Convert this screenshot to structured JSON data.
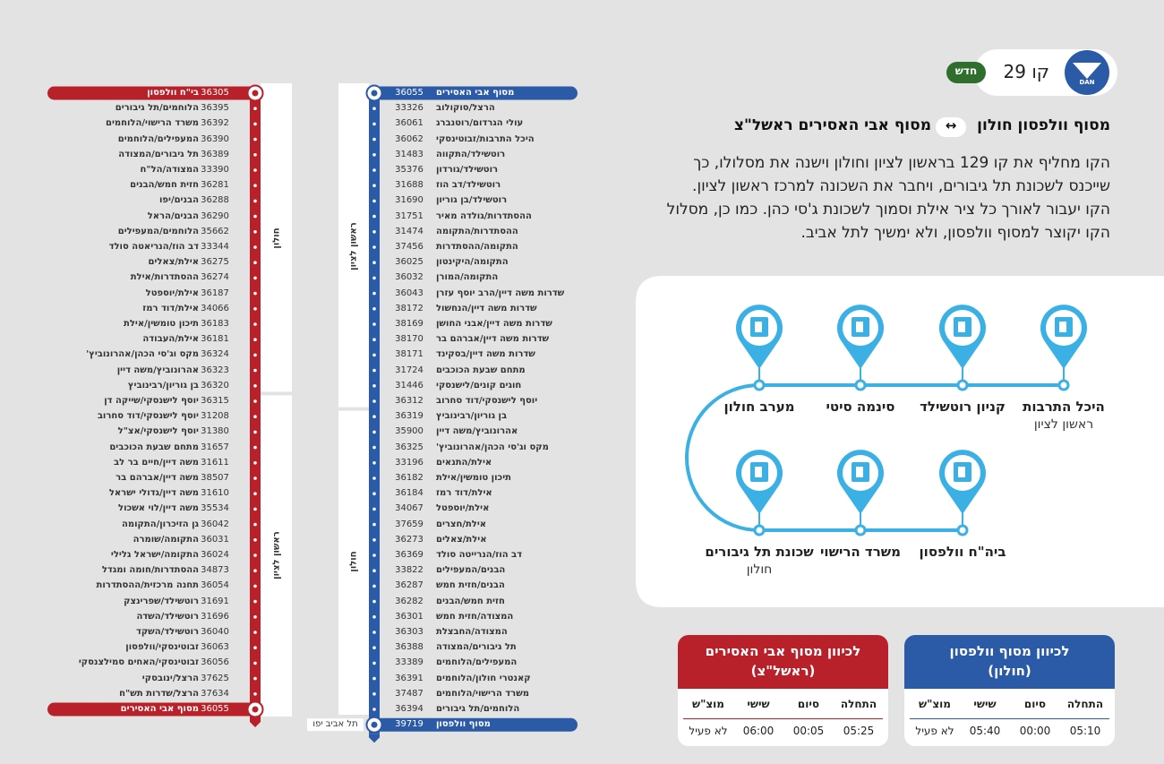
{
  "header": {
    "logo": "DAN",
    "line": "קו 29",
    "badge": "חדש",
    "title_from": "מסוף וולפסון חולון",
    "title_arrow": "↔",
    "title_to": "מסוף אבי האסירים ראשל\"צ",
    "description": [
      "הקו מחליף את קו 129 בראשון לציון וחולון וישנה את מסלולו, כך",
      "שייכנס לשכונת תל גיבורים, ויחבר את השכונה למרכז ראשון לציון.",
      "הקו יעבור לאורך כל ציר אילת וסמוך לשכונת ג'סי כהן. כמו כן, מסלול",
      "הקו יקוצר למסוף וולפסון, ולא ימשיך לתל אביב."
    ]
  },
  "routes": [
    {
      "color": "#b8202a",
      "regions": [
        "חולון",
        "ראשון לציון"
      ],
      "stops": [
        {
          "name": "בי\"ח וולפסון",
          "code": "36305"
        },
        {
          "name": "הלוחמים/תל גיבורים",
          "code": "36395"
        },
        {
          "name": "משרד הרישוי/הלוחמים",
          "code": "36392"
        },
        {
          "name": "המעפילים/הלוחמים",
          "code": "36390"
        },
        {
          "name": "תל גיבורים/המצודה",
          "code": "36389"
        },
        {
          "name": "המצודה/הל\"ח",
          "code": "33390"
        },
        {
          "name": "חזית חמש/הבנים",
          "code": "36281"
        },
        {
          "name": "הבנים/יפו",
          "code": "36288"
        },
        {
          "name": "הבנים/הראל",
          "code": "36290"
        },
        {
          "name": "הלוחמים/המעפילים",
          "code": "35662"
        },
        {
          "name": "דב הוז/הנריאטה סולד",
          "code": "33344"
        },
        {
          "name": "אילת/צאלים",
          "code": "36275"
        },
        {
          "name": "ההסתדרות/אילת",
          "code": "36274"
        },
        {
          "name": "אילת/יוספטל",
          "code": "36187"
        },
        {
          "name": "אילת/דוד רמז",
          "code": "34066"
        },
        {
          "name": "תיכון טומשין/אילת",
          "code": "36183"
        },
        {
          "name": "אילת/העבודה",
          "code": "36181"
        },
        {
          "name": "מקס וג'סי הכהן/אהרונוביץ'",
          "code": "36324"
        },
        {
          "name": "אהרונוביץ/משה דיין",
          "code": "36323"
        },
        {
          "name": "בן גוריון/רבינוביץ",
          "code": "36320"
        },
        {
          "name": "יוסף לישנסקי/שייקה דן",
          "code": "36315"
        },
        {
          "name": "יוסף לישנסקי/דוד סחרוב",
          "code": "31208"
        },
        {
          "name": "יוסף לישנסקי/אצ\"ל",
          "code": "31380"
        },
        {
          "name": "מתחם שבעת הכוכבים",
          "code": "31657"
        },
        {
          "name": "משה דיין/חיים בר לב",
          "code": "31611"
        },
        {
          "name": "משה דיין/אברהם בר",
          "code": "38507"
        },
        {
          "name": "משה דיין/גדולי ישראל",
          "code": "31610"
        },
        {
          "name": "משה דיין/לוי אשכול",
          "code": "35534"
        },
        {
          "name": "גן הזיכרון/התקומה",
          "code": "36042"
        },
        {
          "name": "התקומה/שומרה",
          "code": "36031"
        },
        {
          "name": "התקומה/ישראל גלילי",
          "code": "36024"
        },
        {
          "name": "ההסתדרות/חומה ומגדל",
          "code": "34873"
        },
        {
          "name": "תחנה מרכזית/ההסתדרות",
          "code": "36054"
        },
        {
          "name": "רוטשילד/שפרינצק",
          "code": "31691"
        },
        {
          "name": "רוטשילד/השדה",
          "code": "31696"
        },
        {
          "name": "רוטשילד/השקד",
          "code": "36040"
        },
        {
          "name": "זבוטינסקי/וולפסון",
          "code": "36063"
        },
        {
          "name": "זבוטינסקי/האחים סמילצנסקי",
          "code": "36056"
        },
        {
          "name": "הרצל/ינובסקי",
          "code": "37625"
        },
        {
          "name": "הרצל/שדרות תש\"ח",
          "code": "37634"
        },
        {
          "name": "מסוף אבי האסירים",
          "code": "36055"
        }
      ]
    },
    {
      "color": "#2b5aa6",
      "regions": [
        "ראשון לציון",
        "חולון"
      ],
      "end_city": "תל אביב יפו",
      "stops": [
        {
          "name": "מסוף אבי האסירים",
          "code": "36055"
        },
        {
          "name": "הרצל/סוקולוב",
          "code": "33326"
        },
        {
          "name": "עולי הגרדום/רוטנברג",
          "code": "36061"
        },
        {
          "name": "היכל התרבות/זבוטינסקי",
          "code": "36062"
        },
        {
          "name": "רוטשילד/התקווה",
          "code": "31483"
        },
        {
          "name": "רוטשילד/גורדון",
          "code": "35376"
        },
        {
          "name": "רוטשילד/דב הוז",
          "code": "31688"
        },
        {
          "name": "רוטשילד/בן גוריון",
          "code": "31690"
        },
        {
          "name": "ההסתדרות/גולדה מאיר",
          "code": "31751"
        },
        {
          "name": "ההסתדרות/התקומה",
          "code": "31474"
        },
        {
          "name": "התקומה/ההסתדרות",
          "code": "37456"
        },
        {
          "name": "התקומה/היקינטון",
          "code": "36025"
        },
        {
          "name": "התקומה/המורן",
          "code": "36032"
        },
        {
          "name": "שדרות משה דיין/הרב יוסף עזרן",
          "code": "36043"
        },
        {
          "name": "שדרות משה דיין/הנחשול",
          "code": "38172"
        },
        {
          "name": "שדרות משה דיין/אבני החושן",
          "code": "38169"
        },
        {
          "name": "שדרות משה דיין/אברהם בר",
          "code": "38170"
        },
        {
          "name": "שדרות משה דיין/בסקינד",
          "code": "38171"
        },
        {
          "name": "מתחם שבעת הכוכבים",
          "code": "31724"
        },
        {
          "name": "חוגים קונים/לישנסקי",
          "code": "31446"
        },
        {
          "name": "יוסף לישנסקי/דוד סחרוב",
          "code": "36312"
        },
        {
          "name": "בן גוריון/רבינוביץ",
          "code": "36319"
        },
        {
          "name": "אהרונוביץ/משה דיין",
          "code": "35900"
        },
        {
          "name": "מקס וג'סי הכהן/אהרונוביץ'",
          "code": "36325"
        },
        {
          "name": "אילת/התנאים",
          "code": "33196"
        },
        {
          "name": "תיכון טומשין/אילת",
          "code": "36182"
        },
        {
          "name": "אילת/דוד רמז",
          "code": "36184"
        },
        {
          "name": "אילת/יוספטל",
          "code": "34067"
        },
        {
          "name": "אילת/חצרים",
          "code": "37659"
        },
        {
          "name": "אילת/צאלים",
          "code": "36273"
        },
        {
          "name": "דב הוז/הנרייטה סולד",
          "code": "36369"
        },
        {
          "name": "הבנים/המעפילים",
          "code": "33822"
        },
        {
          "name": "הבנים/חזית חמש",
          "code": "36287"
        },
        {
          "name": "חזית חמש/הבנים",
          "code": "36282"
        },
        {
          "name": "המצודה/חזית חמש",
          "code": "36301"
        },
        {
          "name": "המצודה/החבצלת",
          "code": "36303"
        },
        {
          "name": "תל גיבורים/המצודה",
          "code": "36388"
        },
        {
          "name": "המעפילים/הלוחמים",
          "code": "33389"
        },
        {
          "name": "קאנטרי חולון/הלוחמים",
          "code": "36391"
        },
        {
          "name": "משרד הרישוי/הלוחמים",
          "code": "37487"
        },
        {
          "name": "הלוחמים/תל גיבורים",
          "code": "36394"
        },
        {
          "name": "מסוף וולפסון",
          "code": "39719"
        }
      ]
    }
  ],
  "landmarks": [
    {
      "name": "היכל התרבות",
      "city": "ראשון לציון"
    },
    {
      "name": "קניון רוטשילד"
    },
    {
      "name": "סינמה סיטי"
    },
    {
      "name": "מערב חולון"
    },
    {
      "name": "ביה\"ח וולפסון"
    },
    {
      "name": "משרד הרישוי"
    },
    {
      "name": "שכונת תל גיבורים",
      "city": "חולון"
    }
  ],
  "schedules": [
    {
      "color": "#2b5aa6",
      "title": [
        "לכיוון מסוף וולפסון",
        "(חולון)"
      ],
      "columns": [
        "התחלה",
        "סיום",
        "שישי",
        "מוצ\"ש"
      ],
      "row": [
        "05:10",
        "00:00",
        "05:40",
        "לא פעיל"
      ]
    },
    {
      "color": "#b8202a",
      "title": [
        "לכיוון מסוף אבי האסירים",
        "(ראשל\"צ)"
      ],
      "columns": [
        "התחלה",
        "סיום",
        "שישי",
        "מוצ\"ש"
      ],
      "row": [
        "05:25",
        "00:05",
        "06:00",
        "לא פעיל"
      ]
    }
  ]
}
